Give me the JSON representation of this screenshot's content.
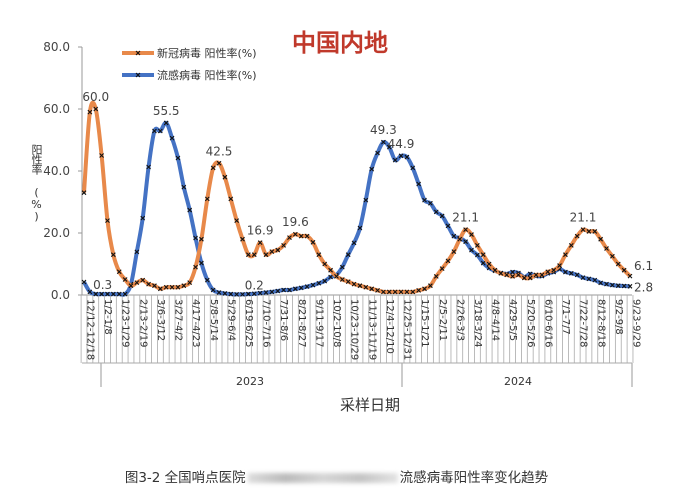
{
  "chart_data": {
    "type": "line",
    "title": "中国内地",
    "ylabel": "阳性率 (%)",
    "xlabel": "采样日期",
    "ylim": [
      0,
      80
    ],
    "yticks": [
      "0.0",
      "20.0",
      "40.0",
      "60.0",
      "80.0"
    ],
    "grid": false,
    "legend_position": "top-left",
    "xtick_labels": [
      "12/12-12/18",
      "1/2-1/8",
      "1/23-1/29",
      "2/13-2/19",
      "3/6-3/12",
      "3/27-4/2",
      "4/17-4/23",
      "5/8-5/14",
      "5/29-6/4",
      "6/19-6/25",
      "7/10-7/16",
      "7/31-8/6",
      "8/21-8/27",
      "9/11-9/17",
      "10/2-10/8",
      "10/23-10/29",
      "11/13-11/19",
      "12/4-12/10",
      "12/25-12/31",
      "1/15-1/21",
      "2/5-2/11",
      "2/26-3/3",
      "3/18-3/24",
      "4/8-4/14",
      "4/29-5/5",
      "5/20-5/26",
      "6/10-6/16",
      "7/1-7/7",
      "7/22-7/28",
      "8/12-8/18",
      "9/2-9/8",
      "9/23-9/29"
    ],
    "year_labels": [
      "2023",
      "2024"
    ],
    "series": [
      {
        "name": "新冠病毒 阳性率(%)",
        "color": "#E8894A",
        "values": [
          33,
          59,
          60,
          45,
          24,
          13,
          7.5,
          5,
          3,
          4,
          4.8,
          3.5,
          3,
          2,
          2.5,
          2.5,
          2.5,
          3,
          4,
          9,
          18,
          31,
          41,
          42.5,
          38,
          31,
          24,
          18,
          13,
          13,
          16.9,
          13,
          14,
          14.5,
          16,
          18.5,
          19.6,
          19,
          19,
          17,
          13,
          10,
          8,
          6,
          5,
          4.3,
          3.5,
          3,
          2.5,
          2,
          1.5,
          1,
          1,
          1,
          1,
          1,
          1,
          1.5,
          2,
          3,
          6,
          8.5,
          11,
          14,
          18,
          21.1,
          19.5,
          16,
          13,
          10,
          8,
          7,
          6.5,
          6,
          6.5,
          5.5,
          5.5,
          6.5,
          6.5,
          7.5,
          8,
          9.5,
          13,
          16,
          19,
          21.1,
          20.5,
          20.5,
          18,
          15,
          12.5,
          10,
          8,
          6.1
        ]
      },
      {
        "name": "流感病毒 阳性率(%)",
        "color": "#4472C4",
        "values": [
          4.2,
          1,
          0.3,
          0.3,
          0.3,
          0.3,
          0.3,
          0.3,
          3.5,
          13.9,
          24.8,
          41.3,
          52.9,
          52.9,
          55.5,
          50.6,
          44.2,
          34.8,
          27.4,
          18.4,
          10.3,
          4.8,
          1.6,
          0.8,
          0.5,
          0.3,
          0.2,
          0.2,
          0.3,
          0.4,
          0.6,
          0.8,
          1,
          1.3,
          1.6,
          1.6,
          2,
          2.3,
          2.7,
          3.2,
          3.8,
          4.5,
          5.8,
          6.5,
          9,
          13,
          16.8,
          21.6,
          30.6,
          40.6,
          45.8,
          49.3,
          47.7,
          43.5,
          44.9,
          44.5,
          41,
          35.8,
          30.6,
          29.6,
          26.8,
          25.5,
          22.3,
          19,
          18.4,
          17.2,
          14.5,
          12.9,
          10.3,
          8.7,
          7.8,
          7.1,
          6.8,
          7.4,
          7.1,
          5.8,
          6.8,
          6.1,
          6.1,
          7,
          7.4,
          8.4,
          7.4,
          7,
          6.5,
          5.6,
          5.2,
          4.8,
          3.9,
          3.5,
          3.2,
          3,
          2.9,
          2.8
        ]
      }
    ],
    "annotations": [
      {
        "series": 0,
        "index": 2,
        "text": "60.0"
      },
      {
        "series": 1,
        "index": 3,
        "text": "0.3"
      },
      {
        "series": 1,
        "index": 14,
        "text": "55.5"
      },
      {
        "series": 0,
        "index": 23,
        "text": "42.5"
      },
      {
        "series": 1,
        "index": 27,
        "text": "0.2"
      },
      {
        "series": 0,
        "index": 30,
        "text": "16.9"
      },
      {
        "series": 0,
        "index": 36,
        "text": "19.6"
      },
      {
        "series": 1,
        "index": 51,
        "text": "49.3"
      },
      {
        "series": 1,
        "index": 54,
        "text": "44.9"
      },
      {
        "series": 0,
        "index": 65,
        "text": "21.1"
      },
      {
        "series": 0,
        "index": 85,
        "text": "21.1"
      },
      {
        "series": 0,
        "index": 93,
        "text": "6.1"
      },
      {
        "series": 1,
        "index": 93,
        "text": "2.8"
      }
    ]
  },
  "caption": {
    "prefix": "图3-2 全国哨点医院",
    "suffix": "流感病毒阳性率变化趋势"
  }
}
